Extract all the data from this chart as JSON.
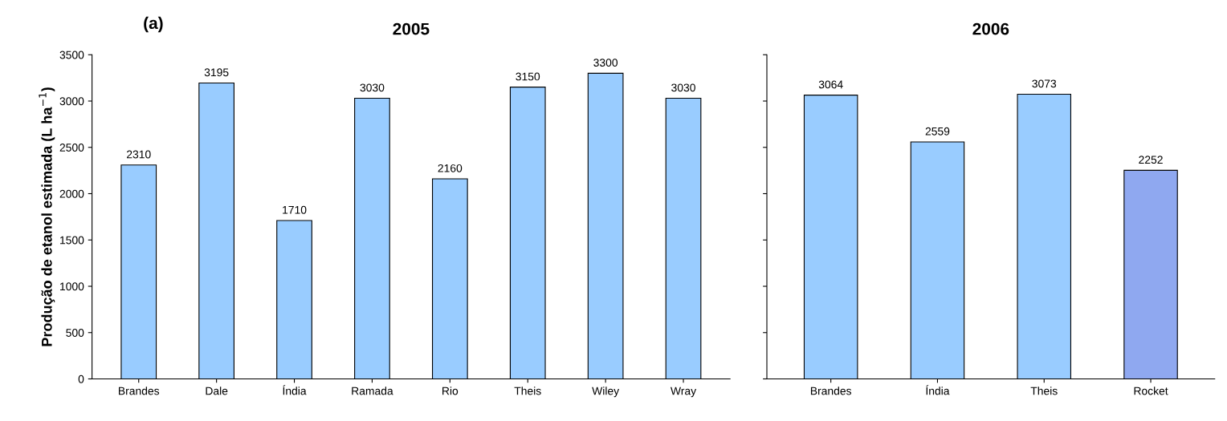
{
  "chart_data": [
    {
      "type": "bar",
      "title": "2005",
      "ylabel": "Produção de etanol estimada (L ha$^{−1}$)",
      "annotations": [
        "(a)"
      ],
      "categories": [
        "Brandes",
        "Dale",
        "Índia",
        "Ramada",
        "Rio",
        "Theis",
        "Wiley",
        "Wray"
      ],
      "values": [
        2310,
        3195,
        1710,
        3030,
        2160,
        3150,
        3300,
        3030
      ],
      "colors": [
        "#99ccff",
        "#99ccff",
        "#99ccff",
        "#99ccff",
        "#99ccff",
        "#99ccff",
        "#99ccff",
        "#99ccff"
      ],
      "ylim": [
        0,
        3500
      ],
      "yticks": [
        0,
        500,
        1000,
        1500,
        2000,
        2500,
        3000,
        3500
      ],
      "data_labels": true,
      "grid": false
    },
    {
      "type": "bar",
      "title": "2006",
      "categories": [
        "Brandes",
        "Índia",
        "Theis",
        "Rocket"
      ],
      "values": [
        3064,
        2559,
        3073,
        2252
      ],
      "colors": [
        "#99ccff",
        "#99ccff",
        "#99ccff",
        "#8fa8f0"
      ],
      "ylim": [
        0,
        3500
      ],
      "yticks": [
        0,
        500,
        1000,
        1500,
        2000,
        2500,
        3000,
        3500
      ],
      "tick_labels": "x",
      "data_labels": true,
      "grid": false
    }
  ]
}
